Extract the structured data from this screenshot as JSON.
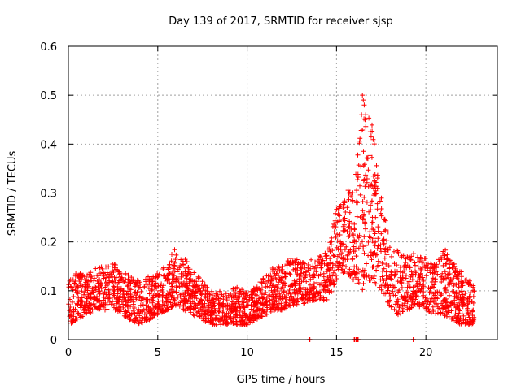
{
  "chart_data": {
    "type": "scatter",
    "title": "Day 139 of 2017, SRMTID for receiver sjsp",
    "xlabel": "GPS time / hours",
    "ylabel": "SRMTID / TECUs",
    "xlim": [
      0,
      24
    ],
    "ylim": [
      0,
      0.6
    ],
    "xticks": [
      0,
      5,
      10,
      15,
      20
    ],
    "yticks": [
      0,
      0.1,
      0.2,
      0.3,
      0.4,
      0.5,
      0.6
    ],
    "xtick_labels": [
      "0",
      "5",
      "10",
      "15",
      "20"
    ],
    "ytick_labels": [
      "0",
      "0.1",
      "0.2",
      "0.3",
      "0.4",
      "0.5",
      "0.6"
    ],
    "grid": true,
    "marker": "+",
    "color": "#ff0000",
    "series": [
      {
        "name": "SRMTID",
        "envelope_hours": [
          0,
          0.5,
          1,
          1.5,
          2,
          2.5,
          3,
          3.5,
          4,
          4.5,
          5,
          5.5,
          6,
          6.5,
          7,
          7.5,
          8,
          8.5,
          9,
          9.5,
          10,
          10.5,
          11,
          11.5,
          12,
          12.5,
          13,
          13.5,
          14,
          14.5,
          15,
          15.5,
          16,
          16.5,
          17,
          17.5,
          18,
          18.5,
          19,
          19.5,
          20,
          20.5,
          21,
          21.5,
          22,
          22.5,
          22.7
        ],
        "envelope_low": [
          0.03,
          0.04,
          0.05,
          0.06,
          0.06,
          0.06,
          0.05,
          0.04,
          0.03,
          0.04,
          0.05,
          0.06,
          0.07,
          0.06,
          0.05,
          0.04,
          0.03,
          0.03,
          0.03,
          0.03,
          0.03,
          0.04,
          0.05,
          0.06,
          0.06,
          0.07,
          0.07,
          0.08,
          0.08,
          0.08,
          0.12,
          0.14,
          0.12,
          0.1,
          0.12,
          0.1,
          0.06,
          0.05,
          0.06,
          0.07,
          0.06,
          0.05,
          0.05,
          0.04,
          0.03,
          0.03,
          0.03
        ],
        "envelope_high": [
          0.12,
          0.14,
          0.13,
          0.15,
          0.15,
          0.16,
          0.14,
          0.13,
          0.12,
          0.13,
          0.14,
          0.16,
          0.19,
          0.17,
          0.14,
          0.12,
          0.1,
          0.1,
          0.1,
          0.11,
          0.1,
          0.11,
          0.13,
          0.15,
          0.16,
          0.17,
          0.16,
          0.17,
          0.17,
          0.18,
          0.28,
          0.3,
          0.32,
          0.48,
          0.44,
          0.3,
          0.2,
          0.18,
          0.17,
          0.18,
          0.17,
          0.16,
          0.19,
          0.16,
          0.14,
          0.12,
          0.11
        ],
        "peak": {
          "x": 16.5,
          "y": 0.5
        },
        "baseline_markers_hours": [
          13.5,
          16.0,
          16.1,
          16.2,
          19.3
        ]
      }
    ]
  }
}
